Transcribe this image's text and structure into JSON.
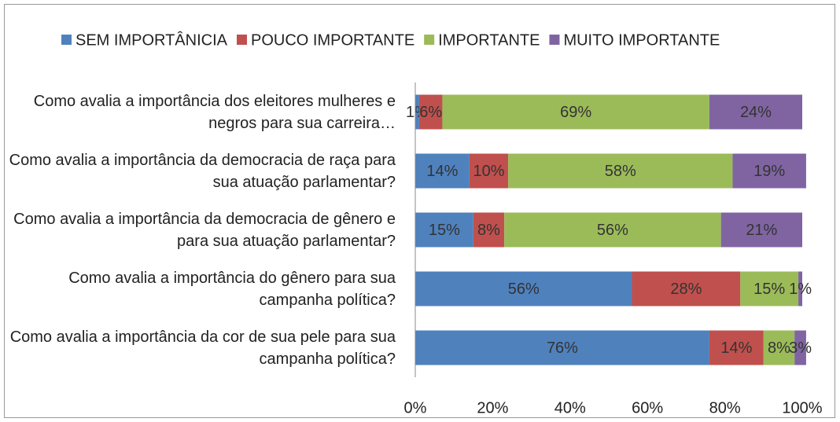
{
  "chart_data": {
    "type": "stacked_bar_horizontal",
    "categories": [
      "Como avalia a importância dos eleitores mulheres e negros para sua carreira…",
      "Como avalia a importância da democracia de raça para sua atuação parlamentar?",
      "Como avalia a importância da democracia de gênero e para sua atuação parlamentar?",
      "Como avalia a importância do gênero para sua campanha política?",
      "Como avalia a importância da cor de sua pele para sua campanha política?"
    ],
    "series": [
      {
        "name": "SEM IMPORTÂNICIA",
        "color": "#4f81bd",
        "values": [
          1,
          14,
          15,
          56,
          76
        ],
        "value_labels": [
          "1%",
          "14%",
          "15%",
          "56%",
          "76%"
        ]
      },
      {
        "name": "POUCO IMPORTANTE",
        "color": "#c0504d",
        "values": [
          6,
          10,
          8,
          28,
          14
        ],
        "value_labels": [
          "6%",
          "10%",
          "8%",
          "28%",
          "14%"
        ]
      },
      {
        "name": "IMPORTANTE",
        "color": "#9bbb59",
        "values": [
          69,
          58,
          56,
          15,
          8
        ],
        "value_labels": [
          "69%",
          "58%",
          "56%",
          "15%",
          "8%"
        ]
      },
      {
        "name": "MUITO IMPORTANTE",
        "color": "#8064a2",
        "values": [
          24,
          19,
          21,
          1,
          3
        ],
        "value_labels": [
          "24%",
          "19%",
          "21%",
          "1%",
          "3%"
        ]
      }
    ],
    "xlim": [
      0,
      100
    ],
    "xticks": [
      {
        "value": 0,
        "label": "0%"
      },
      {
        "value": 20,
        "label": "20%"
      },
      {
        "value": 40,
        "label": "40%"
      },
      {
        "value": 60,
        "label": "60%"
      },
      {
        "value": 80,
        "label": "80%"
      },
      {
        "value": 100,
        "label": "100%"
      }
    ],
    "legend": "top"
  }
}
